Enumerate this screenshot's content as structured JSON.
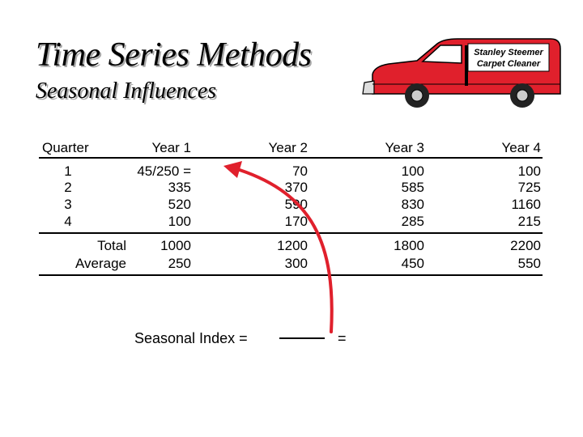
{
  "slide": {
    "title": "Time Series Methods",
    "subtitle": "Seasonal Influences",
    "van_sign_line1": "Stanley Steemer",
    "van_sign_line2": "Carpet Cleaner"
  },
  "table": {
    "headers": [
      "Quarter",
      "Year 1",
      "Year 2",
      "Year 3",
      "Year 4"
    ],
    "quarters": [
      "1",
      "2",
      "3",
      "4"
    ],
    "rows": [
      [
        "45/250 =",
        "70",
        "100",
        "100"
      ],
      [
        "335",
        "370",
        "585",
        "725"
      ],
      [
        "520",
        "590",
        "830",
        "1160"
      ],
      [
        "100",
        "170",
        "285",
        "215"
      ]
    ],
    "total_label": "Total",
    "average_label": "Average",
    "totals": [
      "1000",
      "1200",
      "1800",
      "2200"
    ],
    "averages": [
      "250",
      "300",
      "450",
      "550"
    ]
  },
  "formula": {
    "label": "Seasonal Index =",
    "equals": "="
  },
  "colors": {
    "van_body": "#e0202c",
    "arrow": "#e0202c",
    "title_shadow": "#a8a8a8"
  }
}
